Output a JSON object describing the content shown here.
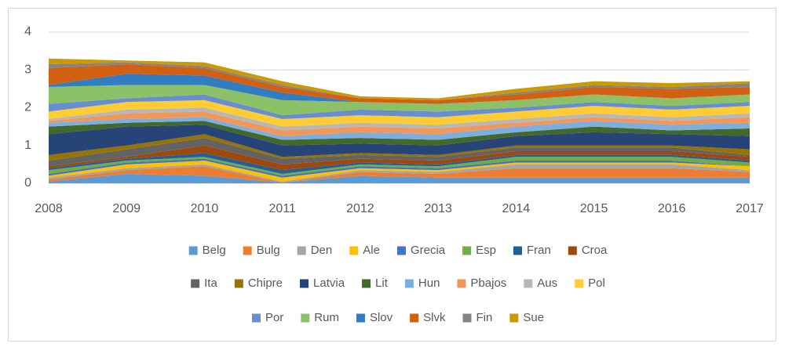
{
  "chart_data": {
    "type": "stacked_area",
    "categories": [
      "2008",
      "2009",
      "2010",
      "2011",
      "2012",
      "2013",
      "2014",
      "2015",
      "2016",
      "2017"
    ],
    "ylim": [
      0,
      4
    ],
    "yticks": [
      0,
      1,
      2,
      3,
      4
    ],
    "grid": true,
    "legend": "bottom",
    "series": [
      {
        "name": "Belg",
        "color": "#5b9bd5",
        "values": [
          0.05,
          0.25,
          0.2,
          0.02,
          0.2,
          0.15,
          0.15,
          0.15,
          0.15,
          0.15
        ]
      },
      {
        "name": "Bulg",
        "color": "#ed7d31",
        "values": [
          0.05,
          0.1,
          0.25,
          0,
          0.1,
          0.1,
          0.25,
          0.25,
          0.25,
          0.15
        ]
      },
      {
        "name": "Den",
        "color": "#a5a5a5",
        "values": [
          0.05,
          0.05,
          0.05,
          0.03,
          0.05,
          0.05,
          0.1,
          0.1,
          0.1,
          0.05
        ]
      },
      {
        "name": "Ale",
        "color": "#ffc000",
        "values": [
          0.05,
          0.1,
          0.1,
          0.1,
          0.05,
          0.05,
          0.05,
          0.05,
          0.05,
          0.1
        ]
      },
      {
        "name": "Grecia",
        "color": "#4472c4",
        "values": [
          0.05,
          0.05,
          0.05,
          0.05,
          0.05,
          0.05,
          0.05,
          0.05,
          0.05,
          0
        ]
      },
      {
        "name": "Esp",
        "color": "#70ad47",
        "values": [
          0.1,
          0.05,
          0.05,
          0.05,
          0.05,
          0.05,
          0.1,
          0.1,
          0.1,
          0.1
        ]
      },
      {
        "name": "Fran",
        "color": "#255e91",
        "values": [
          0.05,
          0.05,
          0.1,
          0.1,
          0.05,
          0.05,
          0.05,
          0.05,
          0.05,
          0.05
        ]
      },
      {
        "name": "Croa",
        "color": "#9e480e",
        "values": [
          0.05,
          0.05,
          0.2,
          0.15,
          0.1,
          0.1,
          0.1,
          0.1,
          0.1,
          0.1
        ]
      },
      {
        "name": "Ita",
        "color": "#636363",
        "values": [
          0.15,
          0.2,
          0.2,
          0.15,
          0.1,
          0.1,
          0.1,
          0.1,
          0.1,
          0.05
        ]
      },
      {
        "name": "Chipre",
        "color": "#997300",
        "values": [
          0.15,
          0.1,
          0.1,
          0.05,
          0.05,
          0.05,
          0.05,
          0.05,
          0.05,
          0.15
        ]
      },
      {
        "name": "Latvia",
        "color": "#264478",
        "values": [
          0.55,
          0.5,
          0.25,
          0.3,
          0.25,
          0.25,
          0.25,
          0.35,
          0.3,
          0.35
        ]
      },
      {
        "name": "Lit",
        "color": "#43682b",
        "values": [
          0.2,
          0.1,
          0.1,
          0.15,
          0.15,
          0.15,
          0.1,
          0.15,
          0.1,
          0.2
        ]
      },
      {
        "name": "Hun",
        "color": "#7cafdd",
        "values": [
          0.1,
          0.1,
          0.1,
          0.1,
          0.15,
          0.15,
          0.15,
          0.15,
          0.15,
          0.15
        ]
      },
      {
        "name": "Pbajos",
        "color": "#f1975a",
        "values": [
          0.05,
          0.15,
          0.15,
          0.15,
          0.15,
          0.15,
          0.1,
          0.1,
          0.1,
          0.15
        ]
      },
      {
        "name": "Aus",
        "color": "#b7b7b7",
        "values": [
          0.05,
          0.1,
          0.1,
          0.1,
          0.1,
          0.1,
          0.1,
          0.1,
          0.1,
          0.1
        ]
      },
      {
        "name": "Pol",
        "color": "#ffcd33",
        "values": [
          0.2,
          0.2,
          0.2,
          0.2,
          0.2,
          0.2,
          0.2,
          0.2,
          0.2,
          0.2
        ]
      },
      {
        "name": "Por",
        "color": "#698ed0",
        "values": [
          0.2,
          0.1,
          0.15,
          0.1,
          0.15,
          0.15,
          0.1,
          0.1,
          0.1,
          0.1
        ]
      },
      {
        "name": "Rum",
        "color": "#8cc168",
        "values": [
          0.45,
          0.35,
          0.25,
          0.4,
          0.2,
          0.2,
          0.2,
          0.2,
          0.2,
          0.2
        ]
      },
      {
        "name": "Slov",
        "color": "#327dc2",
        "values": [
          0.05,
          0.3,
          0.25,
          0.2,
          0,
          0,
          0,
          0,
          0,
          0
        ]
      },
      {
        "name": "Slvk",
        "color": "#d26012",
        "values": [
          0.45,
          0.25,
          0.2,
          0.15,
          0.1,
          0.1,
          0.15,
          0.2,
          0.25,
          0.2
        ]
      },
      {
        "name": "Fin",
        "color": "#848484",
        "values": [
          0.1,
          0.05,
          0.05,
          0.05,
          0,
          0,
          0.05,
          0.05,
          0.05,
          0.1
        ]
      },
      {
        "name": "Sue",
        "color": "#cc9a00",
        "values": [
          0.15,
          0.05,
          0.1,
          0.1,
          0.05,
          0.05,
          0.1,
          0.1,
          0.1,
          0.05
        ]
      }
    ]
  }
}
